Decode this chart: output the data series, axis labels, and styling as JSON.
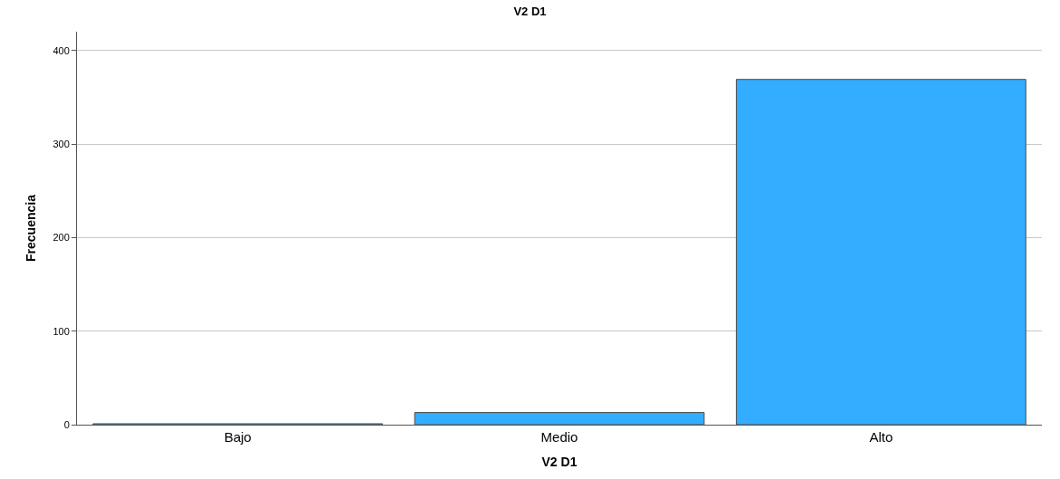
{
  "chart_data": {
    "type": "bar",
    "title": "V2 D1",
    "xlabel": "V2 D1",
    "ylabel": "Frecuencia",
    "categories": [
      "Bajo",
      "Medio",
      "Alto"
    ],
    "values": [
      1,
      13,
      369
    ],
    "color": "#33adff",
    "ylim": [
      0,
      420
    ],
    "yticks": [
      0,
      100,
      200,
      300,
      400
    ],
    "grid": "y",
    "legend": false
  }
}
